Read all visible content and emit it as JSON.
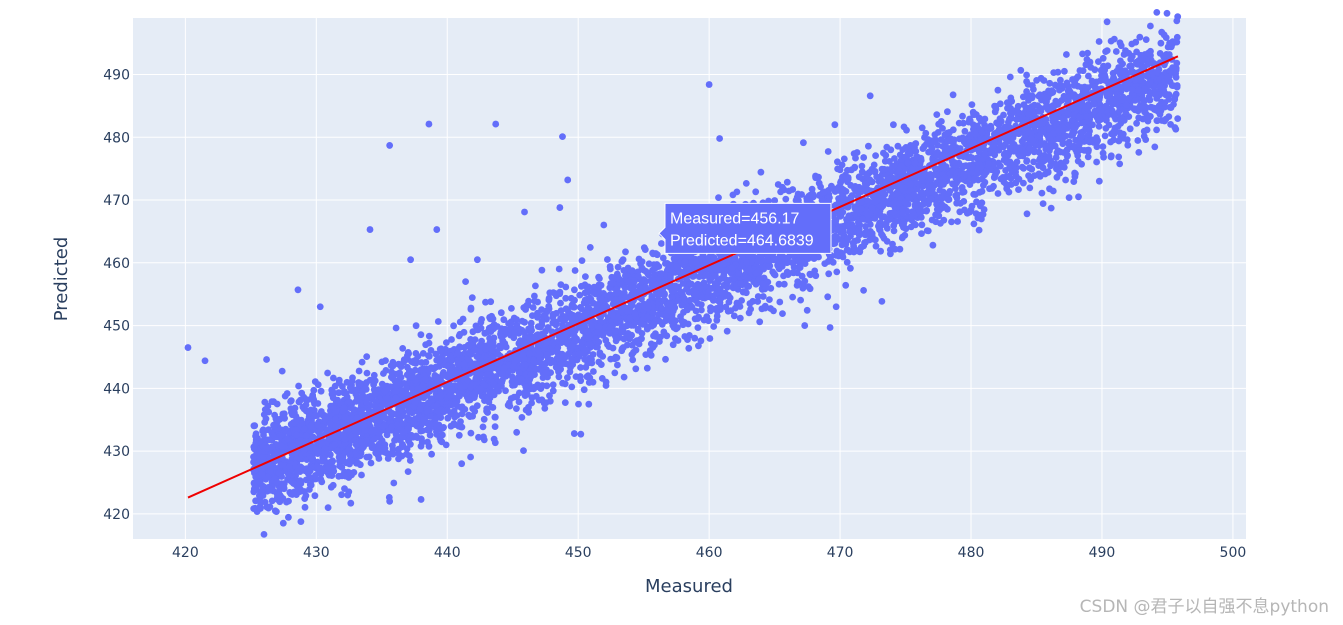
{
  "chart_data": {
    "type": "scatter",
    "xlabel": "Measured",
    "ylabel": "Predicted",
    "xlim": [
      416,
      501
    ],
    "ylim": [
      416,
      499
    ],
    "x_ticks": [
      420,
      430,
      440,
      450,
      460,
      470,
      480,
      490,
      500
    ],
    "y_ticks": [
      420,
      430,
      440,
      450,
      460,
      470,
      480,
      490
    ],
    "grid": true,
    "legend": "none",
    "colors": {
      "marker": "#636efa",
      "fit_line": "#ef0000",
      "plot_bg": "#e5ecf6",
      "grid": "#ffffff",
      "hover_bg": "#636efa"
    },
    "series": [
      {
        "name": "",
        "mode": "markers",
        "main_cloud": {
          "x_range": [
            425.2,
            495.8
          ],
          "slope": 0.895,
          "intercept": 46.5,
          "spread": 4.0,
          "count": 6000
        },
        "outliers": [
          [
            420.2,
            446.5
          ],
          [
            421.5,
            444.4
          ],
          [
            426.2,
            444.6
          ],
          [
            428.6,
            455.7
          ],
          [
            430.3,
            453.0
          ],
          [
            434.1,
            465.3
          ],
          [
            435.6,
            478.7
          ],
          [
            437.2,
            460.5
          ],
          [
            438.6,
            482.1
          ],
          [
            439.2,
            465.3
          ],
          [
            442.3,
            460.5
          ],
          [
            441.4,
            457.0
          ],
          [
            443.7,
            482.1
          ],
          [
            445.9,
            468.1
          ],
          [
            448.8,
            480.1
          ],
          [
            449.2,
            473.2
          ],
          [
            448.6,
            468.8
          ],
          [
            460.0,
            488.4
          ],
          [
            460.8,
            479.8
          ],
          [
            465.6,
            451.9
          ],
          [
            467.3,
            450.0
          ],
          [
            469.7,
            453.0
          ],
          [
            469.6,
            482.0
          ],
          [
            472.3,
            486.6
          ],
          [
            483.0,
            489.6
          ],
          [
            488.9,
            493.4
          ],
          [
            490.4,
            493.8
          ],
          [
            430.9,
            421.0
          ],
          [
            432.4,
            423.0
          ],
          [
            435.6,
            422.0
          ],
          [
            438.0,
            422.3
          ],
          [
            449.7,
            432.8
          ],
          [
            450.2,
            432.7
          ],
          [
            445.3,
            433.0
          ],
          [
            441.1,
            428.0
          ]
        ]
      },
      {
        "name": "",
        "mode": "line",
        "x": [
          420.2,
          495.8
        ],
        "y": [
          422.6,
          492.9
        ]
      }
    ],
    "hover": {
      "x_value": 456.17,
      "y_value": 464.6839,
      "line1": "Measured=456.17",
      "line2": "Predicted=464.6839"
    }
  },
  "watermark": "CSDN @君子以自强不息python"
}
